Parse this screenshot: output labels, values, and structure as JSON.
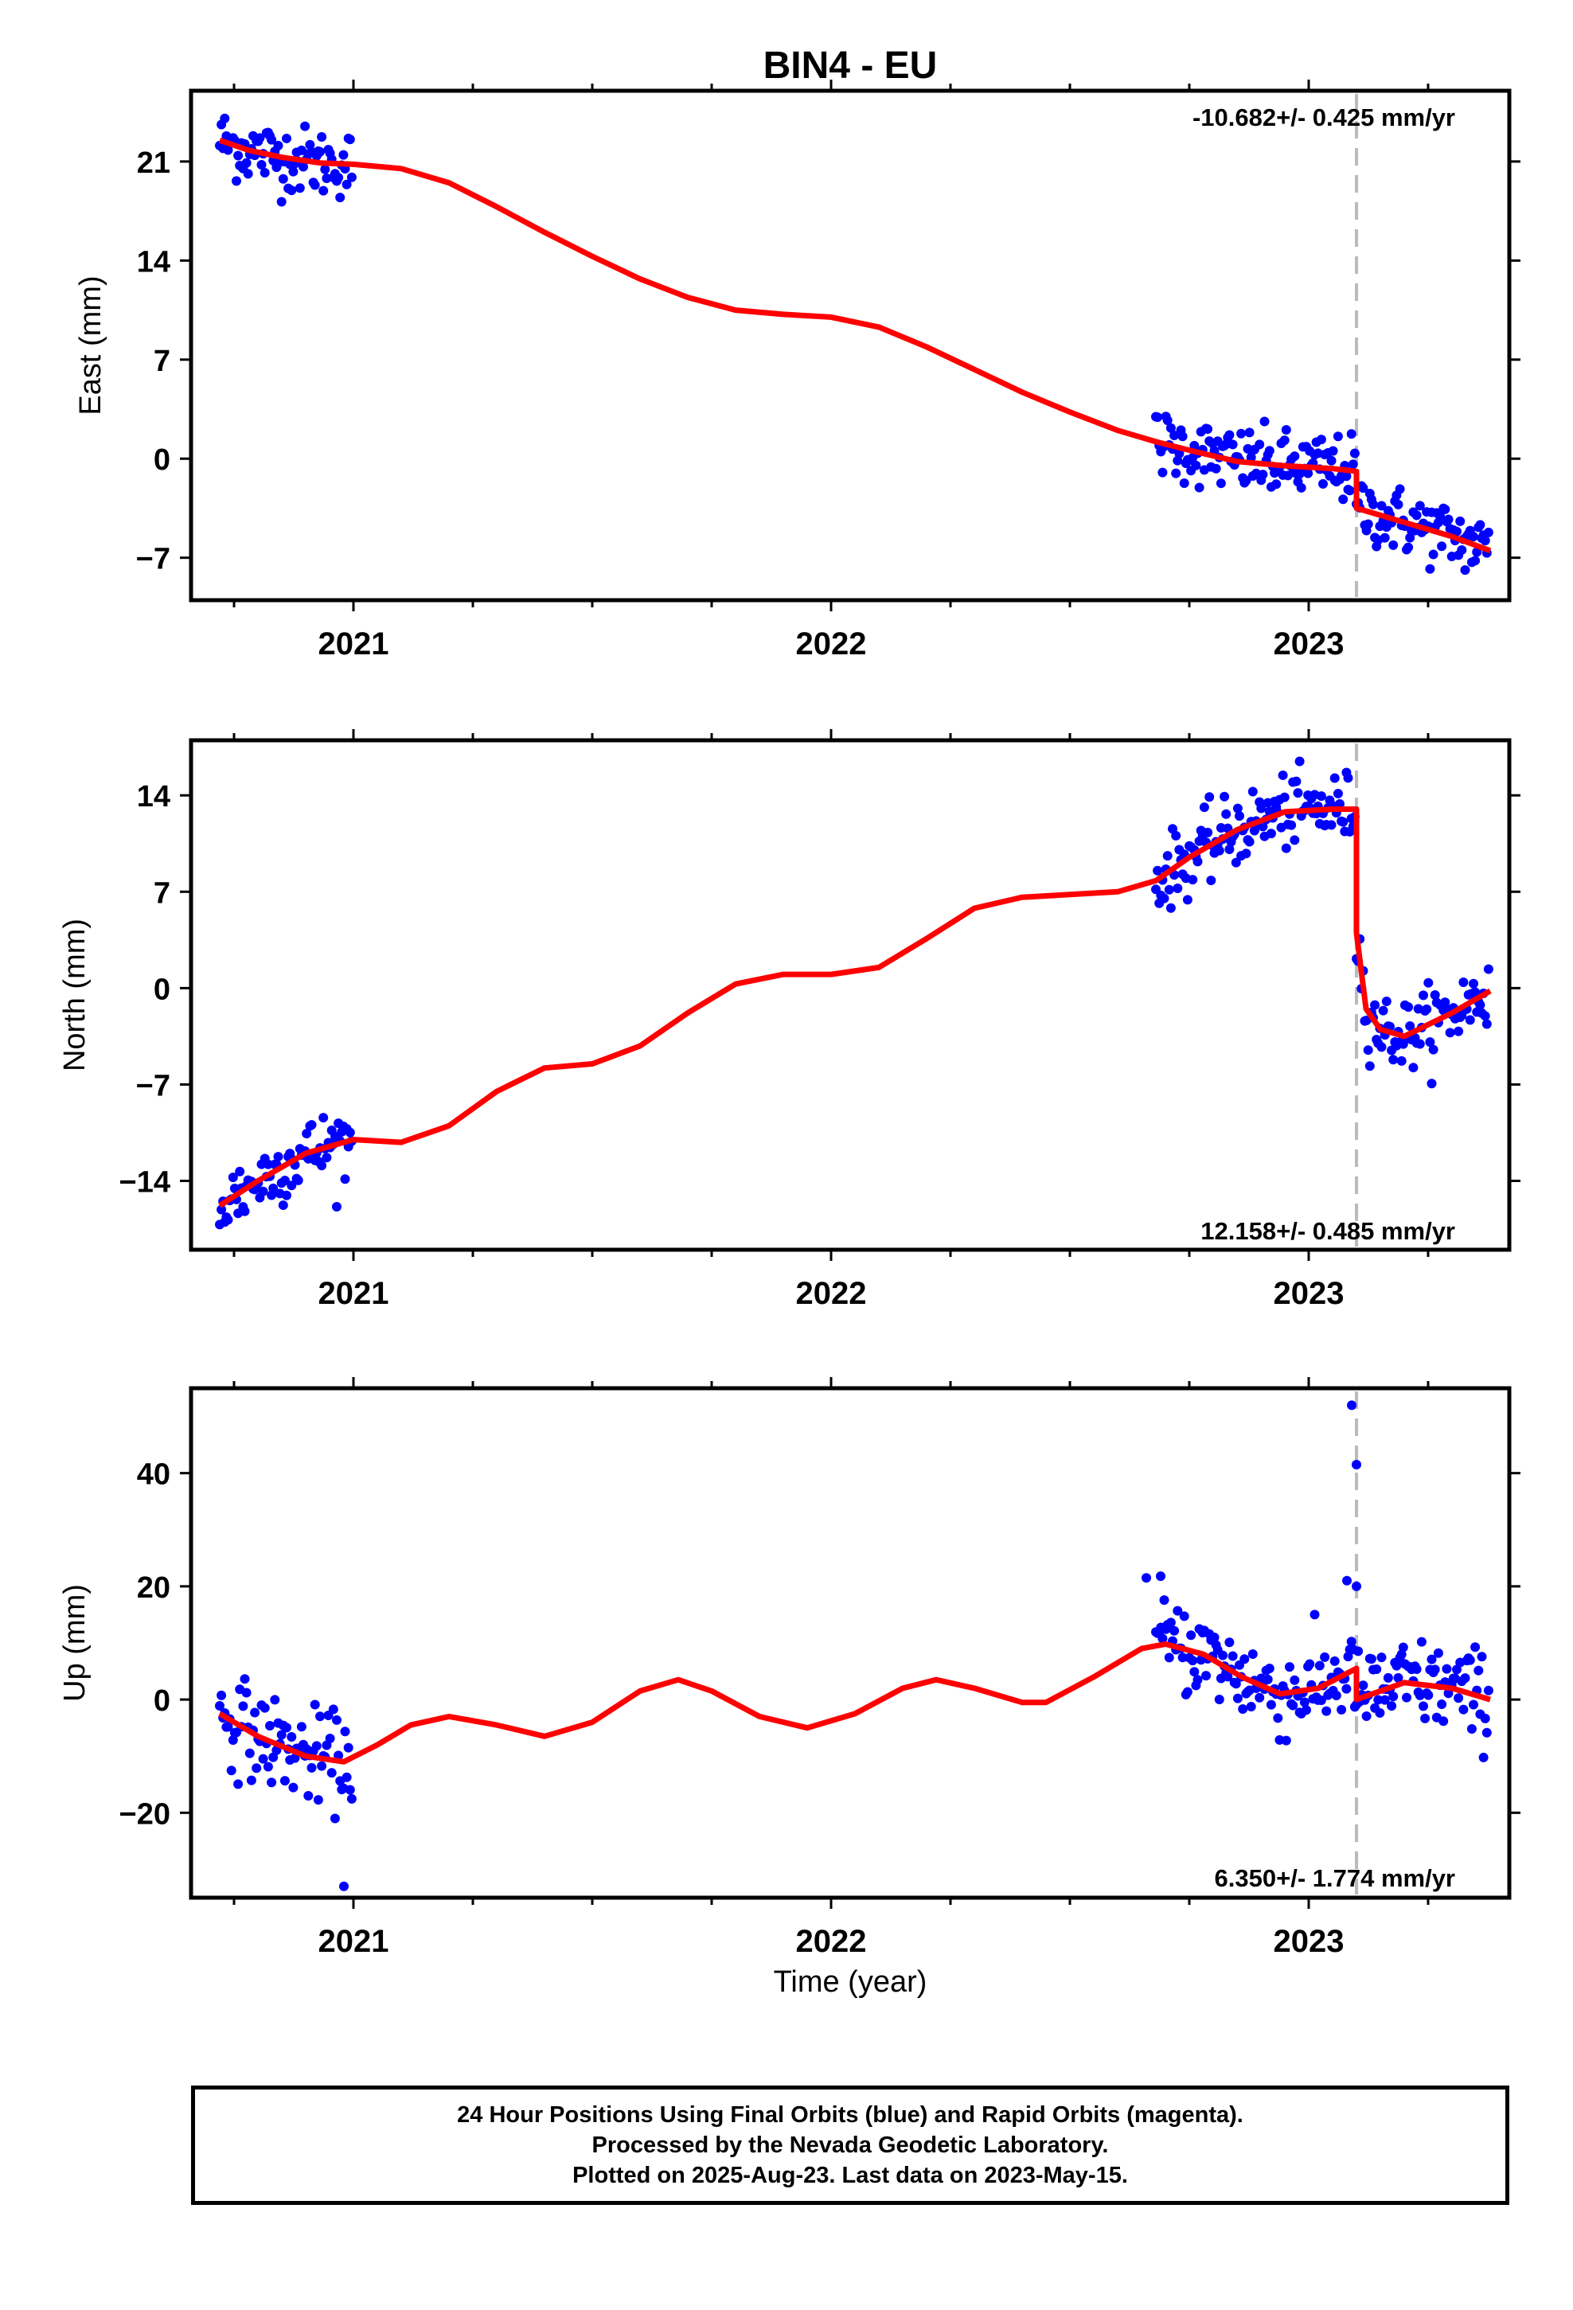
{
  "title": "BIN4 - EU",
  "x_axis_label": "Time (year)",
  "footer": {
    "line1": "24 Hour Positions Using Final Orbits (blue) and Rapid Orbits (magenta).",
    "line2": "Processed by the Nevada Geodetic Laboratory.",
    "line3": "Plotted on 2025-Aug-23. Last data on 2023-May-15."
  },
  "colors": {
    "final_orbits": "#0000ff",
    "model": "#ff0000",
    "event_line": "#bbbbbb",
    "frame": "#000000"
  },
  "chart_data": [
    {
      "type": "scatter",
      "component": "east",
      "ylabel": "East (mm)",
      "rate_text": "-10.682+/- 0.425 mm/yr",
      "xlim": [
        2020.66,
        2023.42
      ],
      "ylim": [
        -10,
        26
      ],
      "xticks": [
        2021,
        2022,
        2023
      ],
      "yticks": [
        -7,
        0,
        7,
        14,
        21
      ],
      "event_x": 2023.1,
      "obs_segments": [
        [
          2020.72,
          2021.0
        ],
        [
          2022.68,
          2023.38
        ]
      ],
      "model": {
        "x": [
          2020.72,
          2020.78,
          2020.85,
          2020.93,
          2021.0,
          2021.1,
          2021.2,
          2021.3,
          2021.4,
          2021.5,
          2021.6,
          2021.7,
          2021.8,
          2021.9,
          2022.0,
          2022.1,
          2022.2,
          2022.3,
          2022.4,
          2022.5,
          2022.6,
          2022.68,
          2022.75,
          2022.85,
          2022.95,
          2023.05,
          2023.1,
          2023.1,
          2023.2,
          2023.3,
          2023.38
        ],
        "y": [
          22.5,
          21.8,
          21.3,
          20.9,
          20.8,
          20.5,
          19.5,
          17.8,
          16.0,
          14.3,
          12.7,
          11.4,
          10.5,
          10.2,
          10.0,
          9.3,
          7.9,
          6.3,
          4.7,
          3.3,
          2.0,
          1.2,
          0.6,
          -0.2,
          -0.5,
          -0.7,
          -0.9,
          -3.5,
          -4.5,
          -5.5,
          -6.5
        ]
      }
    },
    {
      "type": "scatter",
      "component": "north",
      "ylabel": "North (mm)",
      "rate_text": "12.158+/- 0.485 mm/yr",
      "xlim": [
        2020.66,
        2023.42
      ],
      "ylim": [
        -19,
        18
      ],
      "xticks": [
        2021,
        2022,
        2023
      ],
      "yticks": [
        -14,
        -7,
        0,
        7,
        14
      ],
      "event_x": 2023.1,
      "obs_segments": [
        [
          2020.72,
          2021.0
        ],
        [
          2022.68,
          2023.38
        ]
      ],
      "model": {
        "x": [
          2020.72,
          2020.8,
          2020.9,
          2021.0,
          2021.1,
          2021.2,
          2021.3,
          2021.4,
          2021.5,
          2021.6,
          2021.7,
          2021.8,
          2021.9,
          2022.0,
          2022.1,
          2022.2,
          2022.3,
          2022.4,
          2022.5,
          2022.6,
          2022.68,
          2022.75,
          2022.85,
          2022.95,
          2023.05,
          2023.1,
          2023.1,
          2023.12,
          2023.15,
          2023.2,
          2023.3,
          2023.38
        ],
        "y": [
          -15.8,
          -14.0,
          -12.0,
          -11.0,
          -11.2,
          -10.0,
          -7.5,
          -5.8,
          -5.5,
          -4.2,
          -1.8,
          0.3,
          1.0,
          1.0,
          1.5,
          3.6,
          5.8,
          6.6,
          6.8,
          7.0,
          7.8,
          9.5,
          11.5,
          12.8,
          13.0,
          13.0,
          4.0,
          -1.5,
          -3.0,
          -3.5,
          -1.8,
          -0.2
        ]
      }
    },
    {
      "type": "scatter",
      "component": "up",
      "ylabel": "Up (mm)",
      "rate_text": "6.350+/- 1.774 mm/yr",
      "xlim": [
        2020.66,
        2023.42
      ],
      "ylim": [
        -35,
        55
      ],
      "xticks": [
        2021,
        2022,
        2023
      ],
      "yticks": [
        -20,
        0,
        20,
        40
      ],
      "event_x": 2023.1,
      "obs_segments": [
        [
          2020.72,
          2021.0
        ],
        [
          2022.68,
          2023.38
        ]
      ],
      "model": {
        "x": [
          2020.72,
          2020.8,
          2020.9,
          2020.98,
          2021.05,
          2021.12,
          2021.2,
          2021.3,
          2021.4,
          2021.5,
          2021.6,
          2021.68,
          2021.75,
          2021.85,
          2021.95,
          2022.05,
          2022.15,
          2022.22,
          2022.3,
          2022.4,
          2022.45,
          2022.55,
          2022.65,
          2022.7,
          2022.78,
          2022.86,
          2022.94,
          2023.02,
          2023.1,
          2023.1,
          2023.2,
          2023.3,
          2023.38
        ],
        "y": [
          -2.5,
          -6.5,
          -10.0,
          -11.0,
          -8.0,
          -4.5,
          -3.0,
          -4.5,
          -6.5,
          -4.0,
          1.5,
          3.5,
          1.5,
          -3.0,
          -5.0,
          -2.5,
          2.0,
          3.5,
          2.0,
          -0.5,
          -0.5,
          4.0,
          9.0,
          9.8,
          8.0,
          4.0,
          1.0,
          2.0,
          5.5,
          0.0,
          3.0,
          2.0,
          0.0
        ]
      },
      "outliers": [
        [
          2023.09,
          52.0
        ],
        [
          2023.1,
          41.5
        ],
        [
          2020.98,
          -33.0
        ],
        [
          2023.08,
          21.0
        ],
        [
          2023.1,
          20.0
        ],
        [
          2022.66,
          21.5
        ],
        [
          2022.69,
          21.8
        ]
      ]
    }
  ]
}
